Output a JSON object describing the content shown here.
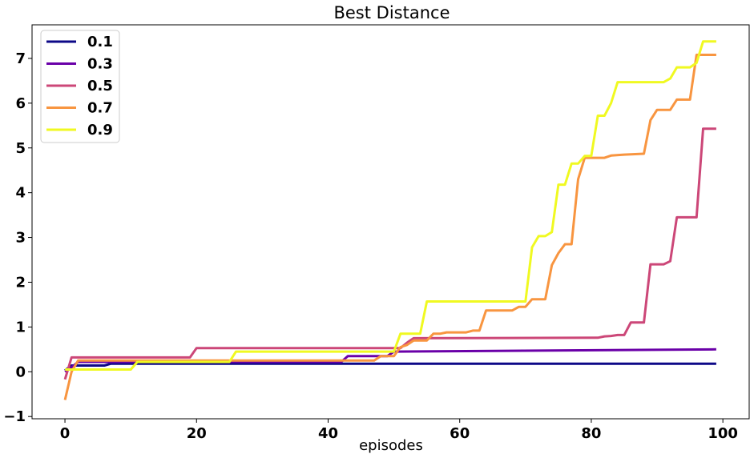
{
  "chart_data": {
    "type": "line",
    "title": "Best Distance",
    "xlabel": "episodes",
    "ylabel": "",
    "xlim": [
      -5,
      104
    ],
    "ylim": [
      -1.05,
      7.75
    ],
    "xticks": [
      0,
      20,
      40,
      60,
      80,
      100
    ],
    "yticks": [
      -1,
      0,
      1,
      2,
      3,
      4,
      5,
      6,
      7
    ],
    "grid": false,
    "legend_position": "top-left",
    "series": [
      {
        "name": "0.1",
        "color": "#0d0887",
        "points": [
          [
            0,
            0.03
          ],
          [
            1,
            0.14
          ],
          [
            6,
            0.14
          ],
          [
            7,
            0.18
          ],
          [
            99,
            0.18
          ]
        ]
      },
      {
        "name": "0.3",
        "color": "#6a00a8",
        "points": [
          [
            0,
            0.0
          ],
          [
            1,
            0.1
          ],
          [
            2,
            0.22
          ],
          [
            42,
            0.22
          ],
          [
            43,
            0.35
          ],
          [
            49,
            0.35
          ],
          [
            50,
            0.45
          ],
          [
            99,
            0.5
          ]
        ]
      },
      {
        "name": "0.5",
        "color": "#cc4778",
        "points": [
          [
            0,
            -0.17
          ],
          [
            1,
            0.32
          ],
          [
            19,
            0.32
          ],
          [
            20,
            0.53
          ],
          [
            51,
            0.53
          ],
          [
            52,
            0.65
          ],
          [
            53,
            0.75
          ],
          [
            81,
            0.76
          ],
          [
            82,
            0.79
          ],
          [
            83,
            0.8
          ],
          [
            84,
            0.82
          ],
          [
            85,
            0.82
          ],
          [
            86,
            1.1
          ],
          [
            88,
            1.1
          ],
          [
            89,
            2.4
          ],
          [
            91,
            2.4
          ],
          [
            92,
            2.47
          ],
          [
            93,
            3.45
          ],
          [
            96,
            3.45
          ],
          [
            97,
            5.43
          ],
          [
            99,
            5.43
          ]
        ]
      },
      {
        "name": "0.7",
        "color": "#f89540",
        "points": [
          [
            0,
            -0.63
          ],
          [
            1,
            0.0
          ],
          [
            2,
            0.25
          ],
          [
            47,
            0.25
          ],
          [
            48,
            0.35
          ],
          [
            50,
            0.35
          ],
          [
            51,
            0.55
          ],
          [
            52,
            0.6
          ],
          [
            53,
            0.7
          ],
          [
            55,
            0.7
          ],
          [
            56,
            0.85
          ],
          [
            57,
            0.85
          ],
          [
            58,
            0.88
          ],
          [
            61,
            0.88
          ],
          [
            62,
            0.92
          ],
          [
            63,
            0.92
          ],
          [
            64,
            1.37
          ],
          [
            68,
            1.37
          ],
          [
            69,
            1.45
          ],
          [
            70,
            1.45
          ],
          [
            71,
            1.62
          ],
          [
            73,
            1.62
          ],
          [
            74,
            2.38
          ],
          [
            75,
            2.65
          ],
          [
            76,
            2.85
          ],
          [
            77,
            2.85
          ],
          [
            78,
            4.3
          ],
          [
            79,
            4.78
          ],
          [
            82,
            4.78
          ],
          [
            83,
            4.83
          ],
          [
            85,
            4.85
          ],
          [
            88,
            4.87
          ],
          [
            89,
            5.62
          ],
          [
            90,
            5.85
          ],
          [
            92,
            5.85
          ],
          [
            93,
            6.08
          ],
          [
            95,
            6.08
          ],
          [
            96,
            7.08
          ],
          [
            99,
            7.08
          ]
        ]
      },
      {
        "name": "0.9",
        "color": "#f0f921",
        "points": [
          [
            0,
            0.05
          ],
          [
            1,
            0.05
          ],
          [
            10,
            0.05
          ],
          [
            11,
            0.22
          ],
          [
            25,
            0.22
          ],
          [
            26,
            0.45
          ],
          [
            50,
            0.45
          ],
          [
            51,
            0.85
          ],
          [
            54,
            0.85
          ],
          [
            55,
            1.57
          ],
          [
            70,
            1.57
          ],
          [
            71,
            2.78
          ],
          [
            72,
            3.03
          ],
          [
            73,
            3.03
          ],
          [
            74,
            3.12
          ],
          [
            75,
            4.18
          ],
          [
            76,
            4.18
          ],
          [
            77,
            4.65
          ],
          [
            78,
            4.65
          ],
          [
            79,
            4.82
          ],
          [
            80,
            4.82
          ],
          [
            81,
            5.72
          ],
          [
            82,
            5.72
          ],
          [
            83,
            6.0
          ],
          [
            84,
            6.47
          ],
          [
            91,
            6.47
          ],
          [
            92,
            6.55
          ],
          [
            93,
            6.8
          ],
          [
            95,
            6.8
          ],
          [
            96,
            6.9
          ],
          [
            97,
            7.38
          ],
          [
            99,
            7.38
          ]
        ]
      }
    ]
  }
}
